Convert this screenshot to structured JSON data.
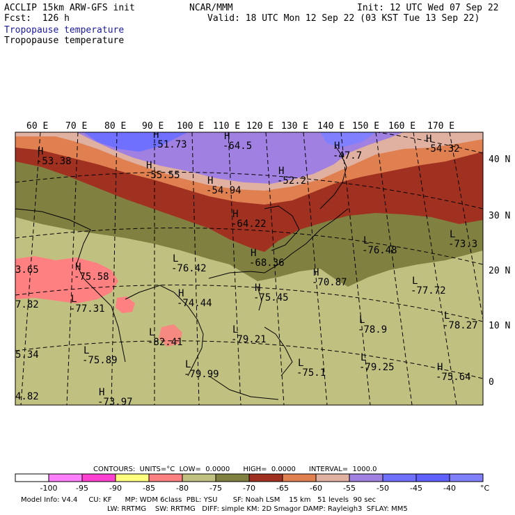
{
  "header": {
    "model": "ACCLIP 15km ARW-GFS init",
    "center": "NCAR/MMM",
    "init": "Init: 12 UTC Wed 07 Sep 22",
    "fcst": "Fcst:  126 h",
    "valid": "Valid: 18 UTC Mon 12 Sep 22 (03 KST Tue 13 Sep 22)",
    "field_line1": "Tropopause temperature",
    "field_line2": "Tropopause temperature"
  },
  "map": {
    "lon_labels": [
      "60 E",
      "70 E",
      "80 E",
      "90 E",
      "100 E",
      "110 E",
      "120 E",
      "130 E",
      "140 E",
      "150 E",
      "160 E",
      "170 E"
    ],
    "lat_labels": [
      "40 N",
      "30 N",
      "20 N",
      "10 N",
      "0"
    ],
    "extrema": [
      {
        "t": "H",
        "v": "-53.38"
      },
      {
        "t": "H",
        "v": "-51.73"
      },
      {
        "t": "H",
        "v": "-64.5"
      },
      {
        "t": "H",
        "v": "-55.55"
      },
      {
        "t": "H",
        "v": "-54.94"
      },
      {
        "t": "H",
        "v": "-52.2"
      },
      {
        "t": "H",
        "v": "-47.7"
      },
      {
        "t": "H",
        "v": "-54.32"
      },
      {
        "t": "H",
        "v": "-64.22"
      },
      {
        "t": "H",
        "v": "-68.36"
      },
      {
        "t": "L",
        "v": "-76.42"
      },
      {
        "t": "L",
        "v": "-76.48"
      },
      {
        "t": "L",
        "v": "-73.3"
      },
      {
        "t": "H",
        "v": "-75.58"
      },
      {
        "t": "L",
        "v": "-77.31"
      },
      {
        "t": "H",
        "v": "-74.44"
      },
      {
        "t": "H",
        "v": "-75.45"
      },
      {
        "t": "H",
        "v": "-70.87"
      },
      {
        "t": "L",
        "v": "-77.72"
      },
      {
        "t": "L",
        "v": "-78.9"
      },
      {
        "t": "L",
        "v": "-78.27"
      },
      {
        "t": "L",
        "v": "-79.21"
      },
      {
        "t": "L",
        "v": "-82.41"
      },
      {
        "t": "L",
        "v": "-75.89"
      },
      {
        "t": "L",
        "v": "-79.99"
      },
      {
        "t": "L",
        "v": "-75.1"
      },
      {
        "t": "L",
        "v": "-79.25"
      },
      {
        "t": "H",
        "v": "-75.64"
      },
      {
        "t": "H",
        "v": "-73.97"
      },
      {
        "t": "",
        "v": "3.65"
      },
      {
        "t": "",
        "v": "7.82"
      },
      {
        "t": "",
        "v": "5.34"
      },
      {
        "t": "",
        "v": "4.82"
      }
    ]
  },
  "contours_line": "CONTOURS:  UNITS=°C  LOW=  0.0000      HIGH=  0.0000      INTERVAL=  1000.0",
  "colorbar": {
    "colors": [
      "#ffffff",
      "#ff80ff",
      "#ff40d0",
      "#ffff80",
      "#ff8080",
      "#c0c080",
      "#808040",
      "#a03020",
      "#e08050",
      "#e0b0a0",
      "#a080e0",
      "#7070ff",
      "#6060ff",
      "#8080ff"
    ],
    "labels": [
      "-100",
      "-95",
      "-90",
      "-85",
      "-80",
      "-75",
      "-70",
      "-65",
      "-60",
      "-55",
      "-50",
      "-45",
      "-40"
    ],
    "unit": "°C"
  },
  "footer": {
    "line1": "Model Info: V4.4     CU: KF      MP: WDM 6class  PBL: YSU       SF: Noah LSM    15 km   51 levels  90 sec",
    "line2": "LW: RRTMG    SW: RRTMG   DIFF: simple KM: 2D Smagor DAMP: Rayleigh3  SFLAY: MM5"
  }
}
